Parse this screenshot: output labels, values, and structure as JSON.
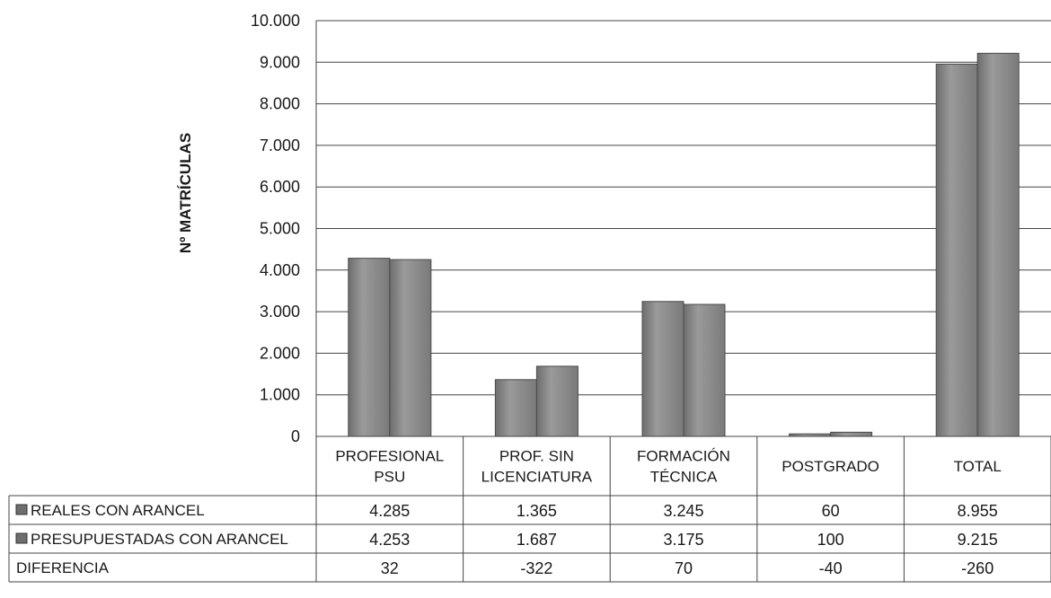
{
  "chart_data": {
    "type": "bar",
    "title": "",
    "xlabel": "",
    "ylabel": "Nº MATRÍCULAS",
    "ylim": [
      0,
      10000
    ],
    "yticks": [
      0,
      1000,
      2000,
      3000,
      4000,
      5000,
      6000,
      7000,
      8000,
      9000,
      10000
    ],
    "ytick_labels": [
      "0",
      "1.000",
      "2.000",
      "3.000",
      "4.000",
      "5.000",
      "6.000",
      "7.000",
      "8.000",
      "9.000",
      "10.000"
    ],
    "categories": [
      [
        "PROFESIONAL",
        "PSU"
      ],
      [
        "PROF. SIN",
        "LICENCIATURA"
      ],
      [
        "FORMACIÓN",
        "TÉCNICA"
      ],
      [
        "POSTGRADO"
      ],
      [
        "TOTAL"
      ]
    ],
    "series": [
      {
        "name": "REALES CON ARANCEL",
        "values": [
          4285,
          1365,
          3245,
          60,
          8955
        ],
        "labels": [
          "4.285",
          "1.365",
          "3.245",
          "60",
          "8.955"
        ],
        "color": "#8c8c8c"
      },
      {
        "name": "PRESUPUESTADAS CON ARANCEL",
        "values": [
          4253,
          1687,
          3175,
          100,
          9215
        ],
        "labels": [
          "4.253",
          "1.687",
          "3.175",
          "100",
          "9.215"
        ],
        "color": "#7a7a7a"
      }
    ],
    "data_table": {
      "rows": [
        {
          "label": "REALES CON ARANCEL",
          "marker": true,
          "cells": [
            "4.285",
            "1.365",
            "3.245",
            "60",
            "8.955"
          ]
        },
        {
          "label": "PRESUPUESTADAS CON ARANCEL",
          "marker": true,
          "cells": [
            "4.253",
            "1.687",
            "3.175",
            "100",
            "9.215"
          ]
        },
        {
          "label": "DIFERENCIA",
          "marker": false,
          "cells": [
            "32",
            "-322",
            "70",
            "-40",
            "-260"
          ]
        }
      ]
    },
    "grid": true,
    "legend": "data-table"
  }
}
